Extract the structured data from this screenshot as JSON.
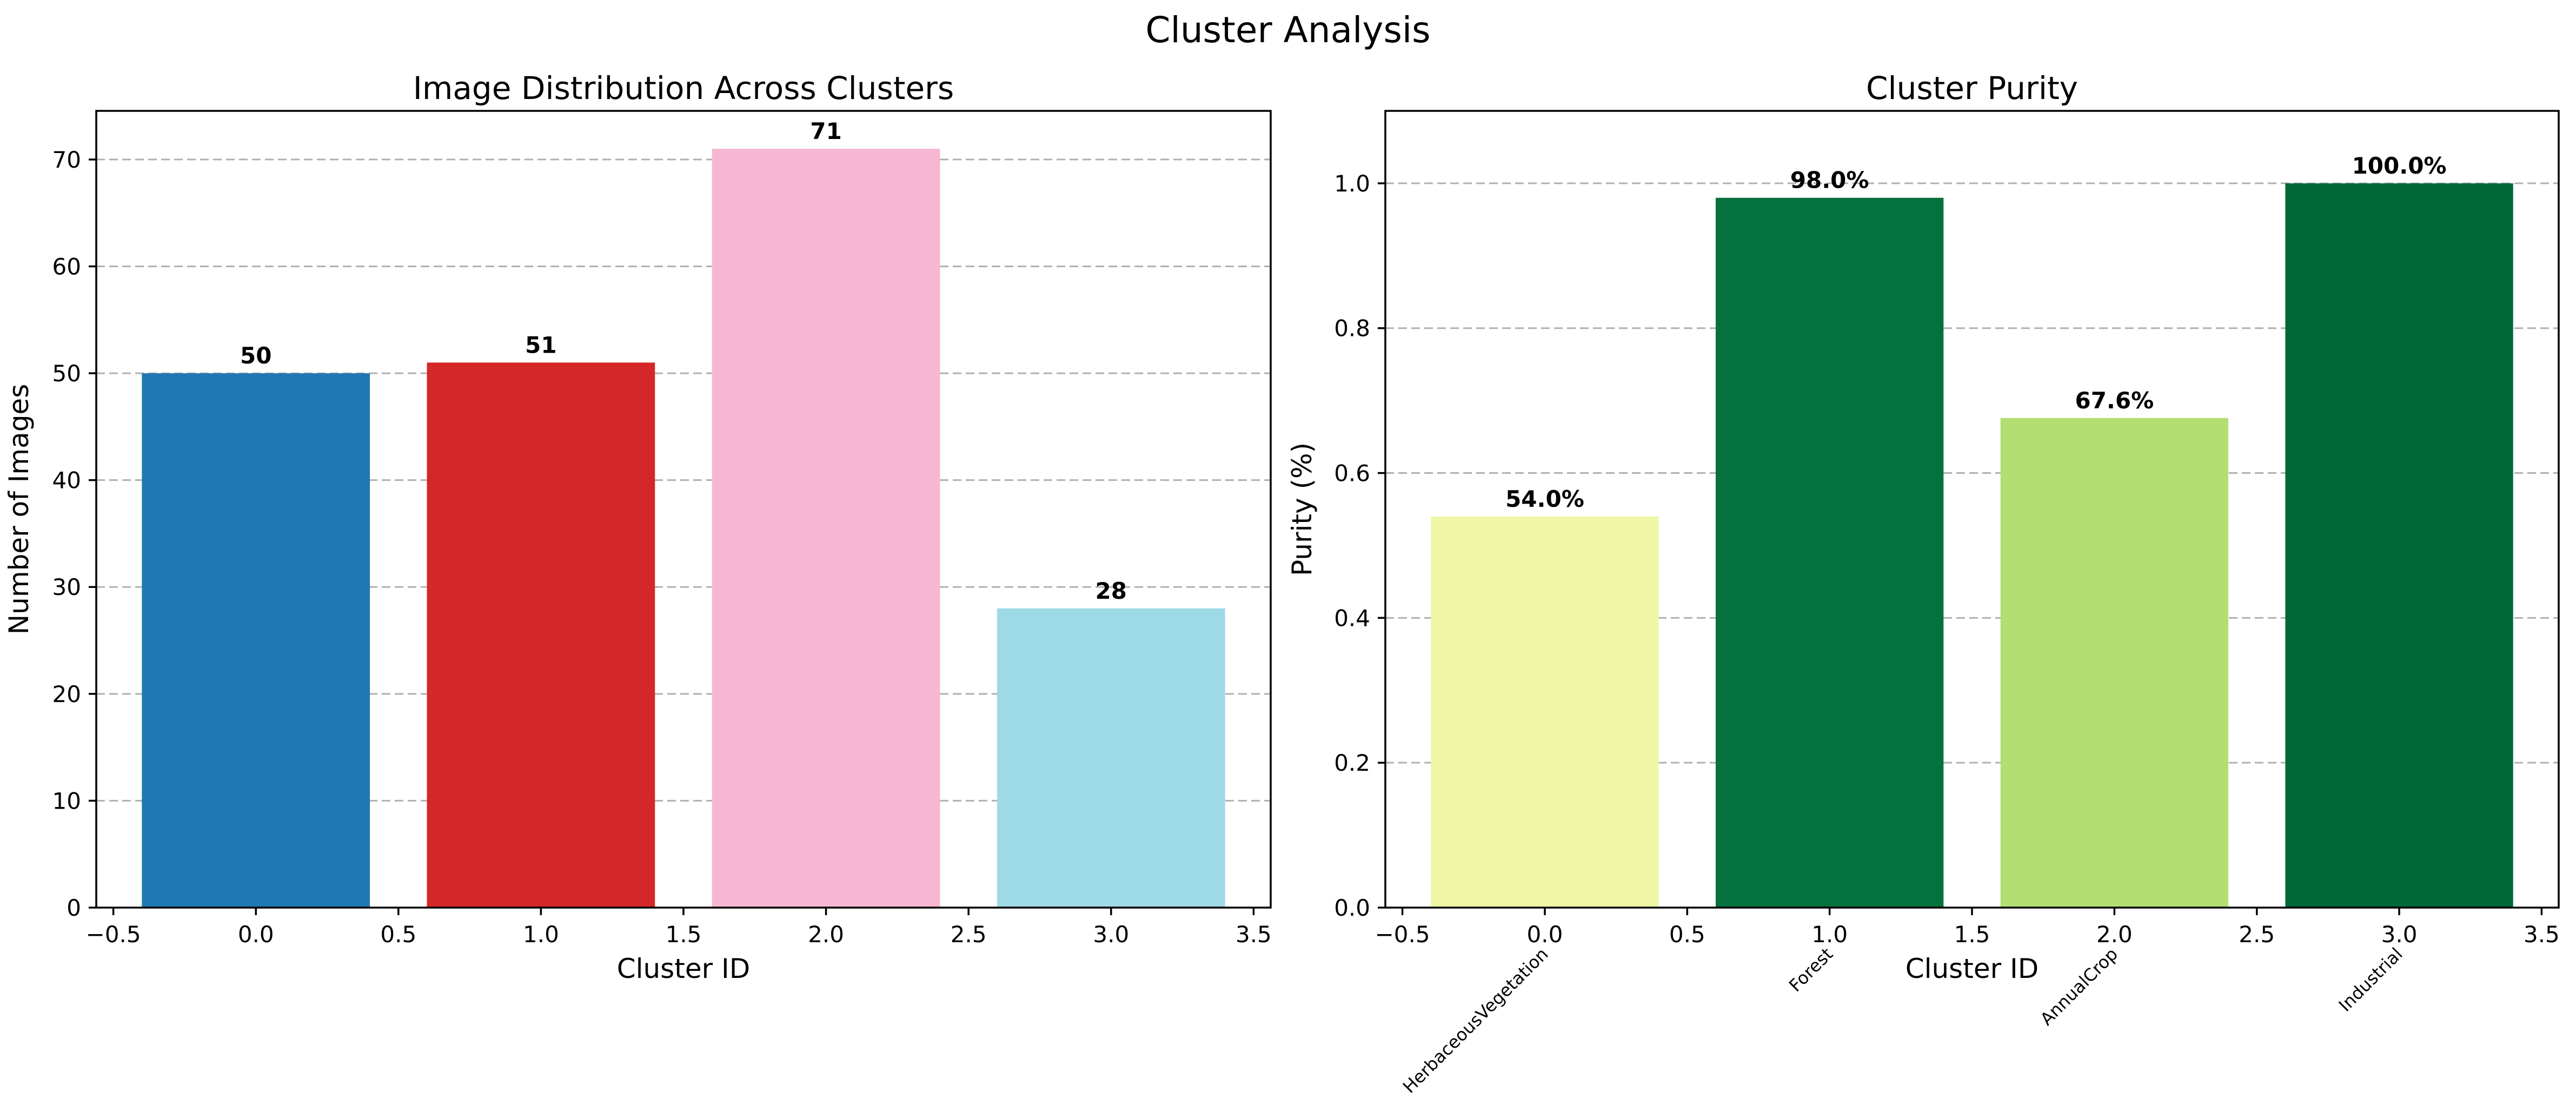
{
  "figure": {
    "title": "Cluster Analysis"
  },
  "chart_data": [
    {
      "type": "bar",
      "title": "Image Distribution Across Clusters",
      "xlabel": "Cluster ID",
      "ylabel": "Number of Images",
      "x": [
        0,
        1,
        2,
        3
      ],
      "values": [
        50,
        51,
        71,
        28
      ],
      "value_labels": [
        "50",
        "51",
        "71",
        "28"
      ],
      "colors": [
        "#1f77b4",
        "#d62728",
        "#f7b6d2",
        "#9edae5"
      ],
      "xlim": [
        -0.56,
        3.56
      ],
      "ylim": [
        0,
        74.55
      ],
      "xticks": [
        -0.5,
        0.0,
        0.5,
        1.0,
        1.5,
        2.0,
        2.5,
        3.0,
        3.5
      ],
      "xtick_labels": [
        "−0.5",
        "0.0",
        "0.5",
        "1.0",
        "1.5",
        "2.0",
        "2.5",
        "3.0",
        "3.5"
      ],
      "yticks": [
        0,
        10,
        20,
        30,
        40,
        50,
        60,
        70
      ],
      "ytick_labels": [
        "0",
        "10",
        "20",
        "30",
        "40",
        "50",
        "60",
        "70"
      ],
      "grid": "y"
    },
    {
      "type": "bar",
      "title": "Cluster Purity",
      "xlabel": "Cluster ID",
      "ylabel": "Purity (%)",
      "x": [
        0,
        1,
        2,
        3
      ],
      "values": [
        0.54,
        0.98,
        0.676,
        1.0
      ],
      "value_labels": [
        "54.0%",
        "98.0%",
        "67.6%",
        "100.0%"
      ],
      "class_labels": [
        "HerbaceousVegetation",
        "Forest",
        "AnnualCrop",
        "Industrial"
      ],
      "colors": [
        "#eff7a7",
        "#05723e",
        "#b3df72",
        "#006837"
      ],
      "xlim": [
        -0.56,
        3.56
      ],
      "ylim": [
        0,
        1.1
      ],
      "xticks": [
        -0.5,
        0.0,
        0.5,
        1.0,
        1.5,
        2.0,
        2.5,
        3.0,
        3.5
      ],
      "xtick_labels": [
        "−0.5",
        "0.0",
        "0.5",
        "1.0",
        "1.5",
        "2.0",
        "2.5",
        "3.0",
        "3.5"
      ],
      "yticks": [
        0.0,
        0.2,
        0.4,
        0.6,
        0.8,
        1.0
      ],
      "ytick_labels": [
        "0.0",
        "0.2",
        "0.4",
        "0.6",
        "0.8",
        "1.0"
      ],
      "grid": "y"
    }
  ]
}
